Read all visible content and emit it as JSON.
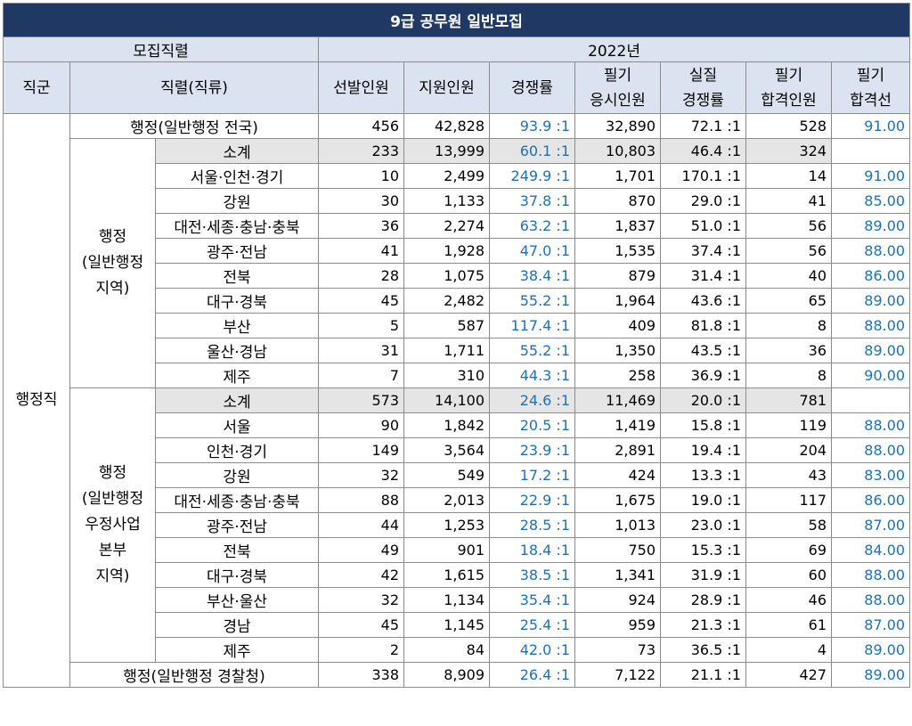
{
  "title": "9급 공무원 일반모집",
  "headers": {
    "recruit_group": "모집직렬",
    "year": "2022년",
    "jikgun": "직군",
    "jikryeol": "직렬(직류)",
    "selected": "선발인원",
    "applied": "지원인원",
    "competition": "경쟁률",
    "exam_takers_l1": "필기",
    "exam_takers_l2": "응시인원",
    "actual_comp_l1": "실질",
    "actual_comp_l2": "경쟁률",
    "passed_l1": "필기",
    "passed_l2": "합격인원",
    "cutoff_l1": "필기",
    "cutoff_l2": "합격선"
  },
  "jikgun_label": "행정직",
  "group1": {
    "l1": "행정",
    "l2": "(일반행정",
    "l3": "지역)"
  },
  "group2": {
    "l1": "행정",
    "l2": "(일반행정",
    "l3": "우정사업",
    "l4": "본부",
    "l5": "지역)"
  },
  "row_national": {
    "name": "행정(일반행정 전국)",
    "sel": "456",
    "app": "42,828",
    "comp": "93.9 :1",
    "take": "32,890",
    "real": "72.1 :1",
    "pass": "528",
    "cut": "91.00"
  },
  "group1_rows": [
    {
      "name": "소계",
      "sel": "233",
      "app": "13,999",
      "comp": "60.1 :1",
      "take": "10,803",
      "real": "46.4 :1",
      "pass": "324",
      "cut": ""
    },
    {
      "name": "서울·인천·경기",
      "sel": "10",
      "app": "2,499",
      "comp": "249.9 :1",
      "take": "1,701",
      "real": "170.1 :1",
      "pass": "14",
      "cut": "91.00"
    },
    {
      "name": "강원",
      "sel": "30",
      "app": "1,133",
      "comp": "37.8 :1",
      "take": "870",
      "real": "29.0 :1",
      "pass": "41",
      "cut": "85.00"
    },
    {
      "name": "대전·세종·충남·충북",
      "sel": "36",
      "app": "2,274",
      "comp": "63.2 :1",
      "take": "1,837",
      "real": "51.0 :1",
      "pass": "56",
      "cut": "89.00"
    },
    {
      "name": "광주·전남",
      "sel": "41",
      "app": "1,928",
      "comp": "47.0 :1",
      "take": "1,535",
      "real": "37.4 :1",
      "pass": "56",
      "cut": "88.00"
    },
    {
      "name": "전북",
      "sel": "28",
      "app": "1,075",
      "comp": "38.4 :1",
      "take": "879",
      "real": "31.4 :1",
      "pass": "40",
      "cut": "86.00"
    },
    {
      "name": "대구·경북",
      "sel": "45",
      "app": "2,482",
      "comp": "55.2 :1",
      "take": "1,964",
      "real": "43.6 :1",
      "pass": "65",
      "cut": "89.00"
    },
    {
      "name": "부산",
      "sel": "5",
      "app": "587",
      "comp": "117.4 :1",
      "take": "409",
      "real": "81.8 :1",
      "pass": "8",
      "cut": "88.00"
    },
    {
      "name": "울산·경남",
      "sel": "31",
      "app": "1,711",
      "comp": "55.2 :1",
      "take": "1,350",
      "real": "43.5 :1",
      "pass": "36",
      "cut": "89.00"
    },
    {
      "name": "제주",
      "sel": "7",
      "app": "310",
      "comp": "44.3 :1",
      "take": "258",
      "real": "36.9 :1",
      "pass": "8",
      "cut": "90.00"
    }
  ],
  "group2_rows": [
    {
      "name": "소계",
      "sel": "573",
      "app": "14,100",
      "comp": "24.6 :1",
      "take": "11,469",
      "real": "20.0 :1",
      "pass": "781",
      "cut": ""
    },
    {
      "name": "서울",
      "sel": "90",
      "app": "1,842",
      "comp": "20.5 :1",
      "take": "1,419",
      "real": "15.8 :1",
      "pass": "119",
      "cut": "88.00"
    },
    {
      "name": "인천·경기",
      "sel": "149",
      "app": "3,564",
      "comp": "23.9 :1",
      "take": "2,891",
      "real": "19.4 :1",
      "pass": "204",
      "cut": "88.00"
    },
    {
      "name": "강원",
      "sel": "32",
      "app": "549",
      "comp": "17.2 :1",
      "take": "424",
      "real": "13.3 :1",
      "pass": "43",
      "cut": "83.00"
    },
    {
      "name": "대전·세종·충남·충북",
      "sel": "88",
      "app": "2,013",
      "comp": "22.9 :1",
      "take": "1,675",
      "real": "19.0 :1",
      "pass": "117",
      "cut": "86.00"
    },
    {
      "name": "광주·전남",
      "sel": "44",
      "app": "1,253",
      "comp": "28.5 :1",
      "take": "1,013",
      "real": "23.0 :1",
      "pass": "58",
      "cut": "87.00"
    },
    {
      "name": "전북",
      "sel": "49",
      "app": "901",
      "comp": "18.4 :1",
      "take": "750",
      "real": "15.3 :1",
      "pass": "69",
      "cut": "84.00"
    },
    {
      "name": "대구·경북",
      "sel": "42",
      "app": "1,615",
      "comp": "38.5 :1",
      "take": "1,341",
      "real": "31.9 :1",
      "pass": "60",
      "cut": "88.00"
    },
    {
      "name": "부산·울산",
      "sel": "32",
      "app": "1,134",
      "comp": "35.4 :1",
      "take": "924",
      "real": "28.9 :1",
      "pass": "46",
      "cut": "88.00"
    },
    {
      "name": "경남",
      "sel": "45",
      "app": "1,145",
      "comp": "25.4 :1",
      "take": "959",
      "real": "21.3 :1",
      "pass": "61",
      "cut": "87.00"
    },
    {
      "name": "제주",
      "sel": "2",
      "app": "84",
      "comp": "42.0 :1",
      "take": "73",
      "real": "36.5 :1",
      "pass": "4",
      "cut": "89.00"
    }
  ],
  "row_police": {
    "name": "행정(일반행정 경찰청)",
    "sel": "338",
    "app": "8,909",
    "comp": "26.4 :1",
    "take": "7,122",
    "real": "21.1 :1",
    "pass": "427",
    "cut": "89.00"
  }
}
